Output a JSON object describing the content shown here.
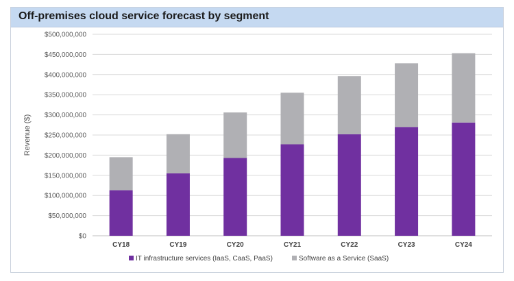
{
  "title": "Off-premises cloud service forecast by segment",
  "colors": {
    "iaas": "#7030a0",
    "saas": "#b0b0b4",
    "grid": "#d9d9d9",
    "title_bg": "#c5d9f1"
  },
  "chart_data": {
    "type": "bar",
    "stacked": true,
    "categories": [
      "CY18",
      "CY19",
      "CY20",
      "CY21",
      "CY22",
      "CY23",
      "CY24"
    ],
    "series": [
      {
        "name": "IT infrastructure services (IaaS, CaaS, PaaS)",
        "values": [
          113000000,
          155000000,
          193000000,
          227000000,
          252000000,
          270000000,
          281000000
        ]
      },
      {
        "name": "Software as a Service (SaaS)",
        "values": [
          82000000,
          97000000,
          113000000,
          128000000,
          144000000,
          158000000,
          172000000
        ]
      }
    ],
    "title": "Off-premises cloud service forecast by segment",
    "xlabel": "",
    "ylabel": "Revenue ($)",
    "ylim": [
      0,
      500000000
    ],
    "yticks": [
      "$0",
      "$50,000,000",
      "$100,000,000",
      "$150,000,000",
      "$200,000,000",
      "$250,000,000",
      "$300,000,000",
      "$350,000,000",
      "$400,000,000",
      "$450,000,000",
      "$500,000,000"
    ],
    "grid": true,
    "legend": "bottom"
  }
}
